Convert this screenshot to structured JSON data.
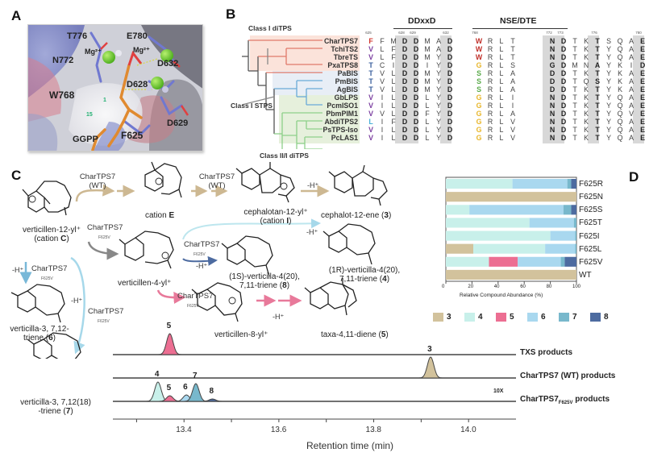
{
  "panels": {
    "A": {
      "letter": "A",
      "residues": [
        {
          "id": "T776",
          "label": "T776",
          "color": "#ffffff"
        },
        {
          "id": "E780",
          "label": "E780",
          "color": "#ffffff"
        },
        {
          "id": "N772",
          "label": "N772",
          "color": "#ffffff"
        },
        {
          "id": "Mg1",
          "label": "Mg²⁺",
          "color": "#111111"
        },
        {
          "id": "Mg2",
          "label": "Mg²⁺",
          "color": "#111111"
        },
        {
          "id": "D632",
          "label": "D632",
          "color": "#111111"
        },
        {
          "id": "D628",
          "label": "D628",
          "color": "#111111"
        },
        {
          "id": "W768",
          "label": "W768",
          "color": "#b22222"
        },
        {
          "id": "D629",
          "label": "D629",
          "color": "#111111"
        },
        {
          "id": "GGPP",
          "label": "GGPP",
          "color": "#111111"
        },
        {
          "id": "F625",
          "label": "F625",
          "color": "#b22222"
        }
      ],
      "carbon_labels": [
        "1",
        "15"
      ]
    },
    "B": {
      "letter": "B",
      "clades": [
        {
          "label": "Class I diTPS",
          "color": "#fbe3da"
        },
        {
          "label": "Class I STPS",
          "color": "#e8eef6"
        },
        {
          "label": "Class II/I diTPS",
          "color": "#e6f0dc"
        }
      ],
      "motifs": [
        {
          "title": "DDxxD"
        },
        {
          "title": "NSE/DTE"
        }
      ],
      "position_numbers": {
        "left": [
          "625",
          "628",
          "629",
          "632"
        ],
        "right": [
          "768",
          "772",
          "773",
          "776",
          "780"
        ]
      },
      "sequences": [
        {
          "name": "CharTPS7",
          "highlight": "#d0342c",
          "left": [
            "F",
            "F",
            "M",
            "D",
            "D",
            "M",
            "A",
            "D"
          ],
          "mid": "W",
          "mid_color": "#c0302a",
          "right": [
            "R",
            "L",
            "T",
            "N",
            "D",
            "T",
            "K",
            "T",
            "S",
            "Q",
            "A",
            "E"
          ]
        },
        {
          "name": "TchiTS2",
          "highlight": "#7b3fa0",
          "left": [
            "V",
            "L",
            "F",
            "D",
            "D",
            "M",
            "A",
            "D"
          ],
          "mid": "W",
          "mid_color": "#c0302a",
          "right": [
            "R",
            "L",
            "T",
            "N",
            "D",
            "T",
            "K",
            "T",
            "Y",
            "Q",
            "A",
            "E"
          ]
        },
        {
          "name": "TbreTS",
          "highlight": "#7b3fa0",
          "left": [
            "V",
            "L",
            "F",
            "D",
            "D",
            "M",
            "Y",
            "D"
          ],
          "mid": "W",
          "mid_color": "#c0302a",
          "right": [
            "R",
            "L",
            "T",
            "N",
            "D",
            "T",
            "K",
            "T",
            "Y",
            "Q",
            "A",
            "E"
          ]
        },
        {
          "name": "PxaTPS8",
          "highlight": "#3a5f9c",
          "left": [
            "T",
            "C",
            "I",
            "D",
            "D",
            "I",
            "Y",
            "D"
          ],
          "mid": "G",
          "mid_color": "#e8b62a",
          "right": [
            "R",
            "L",
            "S",
            "G",
            "D",
            "M",
            "N",
            "A",
            "Y",
            "K",
            "I",
            "D"
          ]
        },
        {
          "name": "PaBIS",
          "highlight": "#3a5f9c",
          "left": [
            "T",
            "V",
            "L",
            "D",
            "D",
            "M",
            "Y",
            "D"
          ],
          "mid": "S",
          "mid_color": "#5aaa4a",
          "right": [
            "R",
            "L",
            "A",
            "D",
            "D",
            "T",
            "K",
            "T",
            "Y",
            "K",
            "A",
            "E"
          ]
        },
        {
          "name": "PmBIS",
          "highlight": "#3a5f9c",
          "left": [
            "T",
            "V",
            "L",
            "D",
            "D",
            "M",
            "Y",
            "D"
          ],
          "mid": "S",
          "mid_color": "#5aaa4a",
          "right": [
            "R",
            "L",
            "A",
            "D",
            "D",
            "T",
            "Q",
            "S",
            "Y",
            "K",
            "A",
            "E"
          ]
        },
        {
          "name": "AgBIS",
          "highlight": "#3a5f9c",
          "left": [
            "T",
            "V",
            "L",
            "D",
            "D",
            "M",
            "Y",
            "D"
          ],
          "mid": "S",
          "mid_color": "#5aaa4a",
          "right": [
            "R",
            "L",
            "A",
            "D",
            "D",
            "T",
            "K",
            "T",
            "Y",
            "K",
            "A",
            "E"
          ]
        },
        {
          "name": "GbLPS",
          "highlight": "#7b3fa0",
          "left": [
            "V",
            "I",
            "L",
            "D",
            "D",
            "L",
            "Y",
            "D"
          ],
          "mid": "G",
          "mid_color": "#e8b62a",
          "right": [
            "R",
            "L",
            "I",
            "N",
            "D",
            "T",
            "K",
            "T",
            "Y",
            "Q",
            "A",
            "E"
          ]
        },
        {
          "name": "PcmISO1",
          "highlight": "#7b3fa0",
          "left": [
            "V",
            "I",
            "L",
            "D",
            "D",
            "L",
            "Y",
            "D"
          ],
          "mid": "G",
          "mid_color": "#e8b62a",
          "right": [
            "R",
            "L",
            "I",
            "N",
            "D",
            "T",
            "K",
            "T",
            "Y",
            "Q",
            "A",
            "E"
          ]
        },
        {
          "name": "PbmPIM1",
          "highlight": "#7b3fa0",
          "left": [
            "V",
            "V",
            "L",
            "D",
            "D",
            "F",
            "Y",
            "D"
          ],
          "mid": "G",
          "mid_color": "#e8b62a",
          "right": [
            "R",
            "L",
            "A",
            "N",
            "D",
            "T",
            "K",
            "T",
            "Y",
            "Q",
            "V",
            "E"
          ]
        },
        {
          "name": "AbdiTPS2",
          "highlight": "#4ab0d8",
          "left": [
            "L",
            "I",
            "F",
            "D",
            "D",
            "L",
            "Y",
            "D"
          ],
          "mid": "G",
          "mid_color": "#e8b62a",
          "right": [
            "R",
            "L",
            "V",
            "N",
            "D",
            "T",
            "K",
            "T",
            "Y",
            "Q",
            "A",
            "E"
          ]
        },
        {
          "name": "PsTPS-Iso",
          "highlight": "#7b3fa0",
          "left": [
            "V",
            "I",
            "L",
            "D",
            "D",
            "L",
            "Y",
            "D"
          ],
          "mid": "G",
          "mid_color": "#e8b62a",
          "right": [
            "R",
            "L",
            "V",
            "N",
            "D",
            "T",
            "K",
            "T",
            "Y",
            "Q",
            "A",
            "E"
          ]
        },
        {
          "name": "PcLAS1",
          "highlight": "#7b3fa0",
          "left": [
            "V",
            "I",
            "L",
            "D",
            "D",
            "L",
            "Y",
            "D"
          ],
          "mid": "G",
          "mid_color": "#e8b62a",
          "right": [
            "R",
            "L",
            "V",
            "N",
            "D",
            "T",
            "K",
            "T",
            "Y",
            "Q",
            "A",
            "E"
          ]
        }
      ]
    },
    "C": {
      "letter": "C",
      "molecules": {
        "cationC": {
          "line1": "verticillen-12-yl⁺",
          "line2_pre": "(cation ",
          "line2_bold": "C",
          "line2_post": ")"
        },
        "cationE": {
          "pre": "cation ",
          "bold": "E"
        },
        "cationI": {
          "line1": "cephalotan-12-yl⁺",
          "line2_pre": "(cation ",
          "line2_bold": "I",
          "line2_post": ")"
        },
        "cmpd3": {
          "pre": "cephalot-12-ene (",
          "bold": "3",
          "post": ")"
        },
        "v4yl": {
          "line1": "verticillen-4-yl⁺"
        },
        "cmpd8": {
          "line1": "(1S)-verticilla-4(20),",
          "line2_pre": "7,11-triene (",
          "line2_bold": "8",
          "line2_post": ")"
        },
        "cmpd4": {
          "line1": "(1R)-verticilla-4(20),",
          "line2_pre": "7,11-triene (",
          "line2_bold": "4",
          "line2_post": ")"
        },
        "v8yl": {
          "line1": "verticillen-8-yl⁺"
        },
        "cmpd5": {
          "pre": "taxa-4,11-diene (",
          "bold": "5",
          "post": ")"
        },
        "cmpd6": {
          "line1": "verticilla-3, 7,12-",
          "line2_pre": "triene (",
          "line2_bold": "6",
          "line2_post": ")"
        },
        "cmpd7": {
          "line1": "verticilla-3, 7,12(18)",
          "line2_pre": "-triene (",
          "line2_bold": "7",
          "line2_post": ")"
        }
      },
      "enzymes": {
        "wt1": {
          "name": "CharTPS7",
          "variant": "(WT)"
        },
        "wt2": {
          "name": "CharTPS7",
          "variant": "(WT)"
        },
        "f1": {
          "name": "CharTPS7",
          "variant": "F625V"
        },
        "f2": {
          "name": "CharTPS7",
          "variant": "F625V"
        },
        "f3": {
          "name": "CharTPS7",
          "variant": "F625V"
        },
        "f4": {
          "name": "CharTPS7",
          "variant": "F625V"
        },
        "f5": {
          "name": "CharTPS7",
          "variant": "F625V"
        }
      },
      "deprotonation": "-H⁺",
      "chromatogram": {
        "traces": [
          {
            "label": "TXS products",
            "peaks": [
              {
                "compound": "5",
                "rt": 13.37
              }
            ]
          },
          {
            "label": "CharTPS7 (WT) products",
            "peaks": [
              {
                "compound": "3",
                "rt": 13.92
              }
            ]
          },
          {
            "label_main": "CharTPS7",
            "label_sub": "F625V",
            "label_post": " products",
            "scale": "10X",
            "peaks": [
              {
                "compound": "4",
                "rt": 13.345
              },
              {
                "compound": "5",
                "rt": 13.37
              },
              {
                "compound": "6",
                "rt": 13.405
              },
              {
                "compound": "7",
                "rt": 13.425
              },
              {
                "compound": "8",
                "rt": 13.46
              }
            ]
          }
        ],
        "xlabel": "Retention time (min)",
        "ticks": [
          "13.4",
          "13.6",
          "13.8",
          "14.0"
        ],
        "xlim": [
          13.25,
          14.1
        ]
      }
    },
    "D": {
      "letter": "D"
    }
  },
  "chart_data": {
    "type": "bar",
    "orientation": "horizontal-stacked",
    "title": "",
    "xlabel": "Relative Compound Abundance (%)",
    "ylabel": "",
    "xlim": [
      0,
      100
    ],
    "xticks": [
      "0",
      "20",
      "40",
      "60",
      "80",
      "100"
    ],
    "categories": [
      "F625R",
      "F625N",
      "F625S",
      "F625T",
      "F625I",
      "F625L",
      "F625V",
      "WT"
    ],
    "series": [
      {
        "name": "3",
        "color": "#d2c29c",
        "values": [
          0,
          100,
          0,
          0,
          0,
          21,
          0,
          100
        ]
      },
      {
        "name": "4",
        "color": "#c8f0ea",
        "values": [
          51,
          0,
          18,
          64,
          80,
          55,
          33,
          0
        ]
      },
      {
        "name": "5",
        "color": "#ec6e92",
        "values": [
          0,
          0,
          0,
          0,
          0,
          0,
          22,
          0
        ]
      },
      {
        "name": "6",
        "color": "#a9d8ef",
        "values": [
          42,
          0,
          72,
          34,
          19,
          23,
          33,
          0
        ]
      },
      {
        "name": "7",
        "color": "#78b8cc",
        "values": [
          3,
          0,
          6,
          2,
          1,
          1,
          3,
          0
        ]
      },
      {
        "name": "8",
        "color": "#4d6ba0",
        "values": [
          4,
          0,
          4,
          0,
          0,
          0,
          9,
          0
        ]
      }
    ],
    "legend": [
      "3",
      "4",
      "5",
      "6",
      "7",
      "8"
    ],
    "legend_position": "bottom"
  }
}
